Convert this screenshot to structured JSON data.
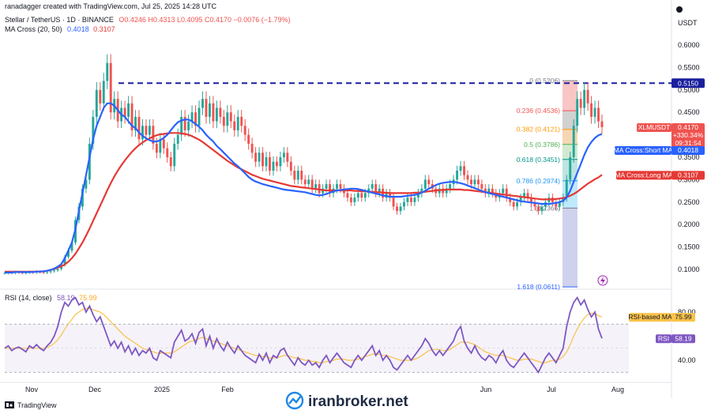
{
  "header": {
    "credit": "ranadagger created with TradingView.com, Jul 25, 2025 14:28 UTC",
    "symbol_line": "Stellar / TetherUS · 1D · BINANCE",
    "ohlc": "O0.4246 H0.4313 L0.4095 C0.4170 −0.0076 (−1.79%)",
    "ma_label": "MA Cross (20, 50)",
    "ma_short_val": "0.4018",
    "ma_long_val": "0.3107",
    "currency": "USDT"
  },
  "price_axis": {
    "ticks": [
      "0.6000",
      "0.5500",
      "0.5000",
      "0.4500",
      "0.4000",
      "0.3500",
      "0.3000",
      "0.2500",
      "0.2000",
      "0.1500",
      "0.1000"
    ],
    "tags": {
      "resistance": "0.5150",
      "symbol": "XLMUSDT",
      "last": "0.4170",
      "change": "+330.34%",
      "countdown": "09:31:54",
      "short_ma_label": "MA Cross:Short MA",
      "short_ma_val": "0.4018",
      "long_ma_label": "MA Cross:Long MA",
      "long_ma_val": "0.3107"
    }
  },
  "time_axis": [
    "Nov",
    "Dec",
    "2025",
    "Feb",
    "Jun",
    "Jul",
    "Aug"
  ],
  "fib_levels": [
    {
      "label": "0 (0.5206)",
      "value": 0.5206
    },
    {
      "label": "0.236 (0.4536)",
      "value": 0.4536
    },
    {
      "label": "0.382 (0.4121)",
      "value": 0.4121
    },
    {
      "label": "0.5 (0.3786)",
      "value": 0.3786
    },
    {
      "label": "0.618 (0.3451)",
      "value": 0.3451
    },
    {
      "label": "0.786 (0.2974)",
      "value": 0.2974
    },
    {
      "label": "1 (0.2366)",
      "value": 0.2366
    },
    {
      "label": "1.618 (0.0611)",
      "value": 0.0611
    }
  ],
  "rsi": {
    "label": "RSI (14, close)",
    "header_val": "58.19",
    "header_ma": "75.99",
    "ticks": [
      "80.00",
      "40.00"
    ],
    "ma_tag_label": "RSI-based MA",
    "ma_tag_val": "75.99",
    "rsi_tag_label": "RSI",
    "rsi_tag_val": "58.19"
  },
  "footer": {
    "tv_logo": "TradingView",
    "watermark": "iranbroker.net"
  },
  "colors": {
    "up": "#26a69a",
    "down": "#ef5350",
    "short_ma": "#2962ff",
    "long_ma": "#e53935",
    "rsi": "#7e57c2",
    "rsi_ma": "#f9c24a",
    "resistance": "#1a1f9e"
  },
  "chart_data": [
    {
      "type": "candlestick",
      "title": "Stellar / TetherUS · 1D · BINANCE",
      "ylim": [
        0.075,
        0.64
      ],
      "x_range": [
        "2024-10-15",
        "2025-08-31"
      ],
      "resistance": 0.515,
      "candles_close": [
        0.092,
        0.093,
        0.092,
        0.094,
        0.093,
        0.092,
        0.093,
        0.094,
        0.093,
        0.095,
        0.094,
        0.093,
        0.094,
        0.096,
        0.098,
        0.101,
        0.11,
        0.128,
        0.142,
        0.16,
        0.21,
        0.24,
        0.28,
        0.3,
        0.38,
        0.44,
        0.5,
        0.47,
        0.52,
        0.56,
        0.45,
        0.48,
        0.43,
        0.46,
        0.44,
        0.47,
        0.41,
        0.44,
        0.39,
        0.42,
        0.4,
        0.42,
        0.38,
        0.36,
        0.39,
        0.37,
        0.35,
        0.33,
        0.38,
        0.4,
        0.44,
        0.41,
        0.43,
        0.45,
        0.42,
        0.46,
        0.48,
        0.44,
        0.47,
        0.43,
        0.46,
        0.44,
        0.42,
        0.45,
        0.43,
        0.41,
        0.44,
        0.42,
        0.4,
        0.38,
        0.36,
        0.34,
        0.36,
        0.33,
        0.35,
        0.32,
        0.34,
        0.33,
        0.35,
        0.36,
        0.34,
        0.32,
        0.3,
        0.32,
        0.3,
        0.29,
        0.3,
        0.28,
        0.29,
        0.27,
        0.28,
        0.29,
        0.27,
        0.28,
        0.29,
        0.28,
        0.27,
        0.26,
        0.25,
        0.26,
        0.27,
        0.26,
        0.27,
        0.28,
        0.29,
        0.27,
        0.28,
        0.26,
        0.27,
        0.26,
        0.24,
        0.23,
        0.24,
        0.25,
        0.26,
        0.25,
        0.26,
        0.27,
        0.28,
        0.3,
        0.29,
        0.28,
        0.27,
        0.28,
        0.27,
        0.28,
        0.29,
        0.3,
        0.32,
        0.33,
        0.31,
        0.3,
        0.29,
        0.3,
        0.29,
        0.28,
        0.27,
        0.28,
        0.27,
        0.26,
        0.27,
        0.28,
        0.26,
        0.25,
        0.24,
        0.25,
        0.26,
        0.27,
        0.26,
        0.25,
        0.24,
        0.23,
        0.24,
        0.25,
        0.26,
        0.25,
        0.24,
        0.25,
        0.26,
        0.3,
        0.35,
        0.42,
        0.48,
        0.46,
        0.5,
        0.47,
        0.44,
        0.46,
        0.43,
        0.417
      ],
      "ma_short": [
        0.093,
        0.093,
        0.093,
        0.094,
        0.094,
        0.094,
        0.094,
        0.094,
        0.094,
        0.095,
        0.095,
        0.096,
        0.097,
        0.099,
        0.102,
        0.106,
        0.112,
        0.125,
        0.142,
        0.16,
        0.19,
        0.23,
        0.27,
        0.31,
        0.35,
        0.39,
        0.42,
        0.44,
        0.46,
        0.47,
        0.47,
        0.465,
        0.455,
        0.445,
        0.44,
        0.43,
        0.42,
        0.415,
        0.405,
        0.398,
        0.392,
        0.388,
        0.385,
        0.385,
        0.388,
        0.393,
        0.4,
        0.41,
        0.42,
        0.428,
        0.432,
        0.434,
        0.434,
        0.43,
        0.424,
        0.418,
        0.41,
        0.4,
        0.392,
        0.385,
        0.375,
        0.368,
        0.36,
        0.352,
        0.344,
        0.336,
        0.33,
        0.322,
        0.314,
        0.306,
        0.3,
        0.296,
        0.293,
        0.29,
        0.288,
        0.286,
        0.284,
        0.282,
        0.28,
        0.278,
        0.277,
        0.276,
        0.275,
        0.274,
        0.273,
        0.272,
        0.27,
        0.268,
        0.266,
        0.265,
        0.266,
        0.268,
        0.271,
        0.274,
        0.276,
        0.277,
        0.278,
        0.279,
        0.28,
        0.28,
        0.279,
        0.277,
        0.275,
        0.273,
        0.271,
        0.269,
        0.267,
        0.265,
        0.263,
        0.262,
        0.262,
        0.262,
        0.262,
        0.263,
        0.264,
        0.265,
        0.266,
        0.268,
        0.271,
        0.275,
        0.28,
        0.284,
        0.288,
        0.291,
        0.293,
        0.294,
        0.295,
        0.295,
        0.294,
        0.292,
        0.29,
        0.287,
        0.284,
        0.281,
        0.278,
        0.275,
        0.272,
        0.27,
        0.268,
        0.266,
        0.264,
        0.262,
        0.26,
        0.258,
        0.256,
        0.254,
        0.252,
        0.251,
        0.25,
        0.249,
        0.248,
        0.247,
        0.246,
        0.246,
        0.246,
        0.247,
        0.248,
        0.25,
        0.253,
        0.26,
        0.275,
        0.295,
        0.315,
        0.335,
        0.355,
        0.372,
        0.384,
        0.393,
        0.399,
        0.4018
      ],
      "ma_long": [
        0.095,
        0.095,
        0.095,
        0.095,
        0.095,
        0.095,
        0.095,
        0.095,
        0.095,
        0.095,
        0.095,
        0.096,
        0.097,
        0.099,
        0.101,
        0.104,
        0.107,
        0.111,
        0.117,
        0.125,
        0.135,
        0.147,
        0.16,
        0.175,
        0.191,
        0.208,
        0.225,
        0.242,
        0.259,
        0.276,
        0.292,
        0.307,
        0.32,
        0.332,
        0.343,
        0.353,
        0.362,
        0.37,
        0.377,
        0.383,
        0.388,
        0.392,
        0.396,
        0.399,
        0.401,
        0.402,
        0.403,
        0.404,
        0.404,
        0.404,
        0.403,
        0.402,
        0.4,
        0.397,
        0.393,
        0.389,
        0.384,
        0.378,
        0.372,
        0.366,
        0.36,
        0.354,
        0.348,
        0.342,
        0.337,
        0.332,
        0.327,
        0.323,
        0.319,
        0.315,
        0.311,
        0.308,
        0.305,
        0.302,
        0.3,
        0.298,
        0.296,
        0.294,
        0.292,
        0.29,
        0.288,
        0.286,
        0.285,
        0.284,
        0.283,
        0.282,
        0.281,
        0.28,
        0.279,
        0.278,
        0.277,
        0.276,
        0.276,
        0.276,
        0.276,
        0.276,
        0.276,
        0.276,
        0.276,
        0.275,
        0.275,
        0.274,
        0.274,
        0.273,
        0.273,
        0.272,
        0.272,
        0.271,
        0.271,
        0.27,
        0.27,
        0.27,
        0.27,
        0.27,
        0.27,
        0.27,
        0.271,
        0.271,
        0.272,
        0.273,
        0.274,
        0.275,
        0.276,
        0.277,
        0.277,
        0.278,
        0.278,
        0.278,
        0.278,
        0.278,
        0.277,
        0.277,
        0.276,
        0.275,
        0.274,
        0.273,
        0.272,
        0.271,
        0.27,
        0.269,
        0.268,
        0.267,
        0.266,
        0.265,
        0.264,
        0.263,
        0.262,
        0.261,
        0.26,
        0.259,
        0.258,
        0.257,
        0.256,
        0.256,
        0.256,
        0.256,
        0.257,
        0.258,
        0.259,
        0.261,
        0.264,
        0.268,
        0.273,
        0.279,
        0.285,
        0.291,
        0.296,
        0.301,
        0.305,
        0.3107
      ]
    },
    {
      "type": "line",
      "title": "RSI (14, close)",
      "ylim": [
        20,
        100
      ],
      "rsi": [
        50,
        52,
        48,
        50,
        51,
        49,
        47,
        52,
        50,
        53,
        50,
        48,
        52,
        55,
        60,
        68,
        80,
        88,
        85,
        90,
        92,
        86,
        88,
        80,
        85,
        78,
        72,
        76,
        68,
        60,
        52,
        56,
        50,
        55,
        47,
        52,
        45,
        50,
        44,
        48,
        46,
        50,
        42,
        40,
        48,
        46,
        44,
        42,
        55,
        60,
        65,
        56,
        58,
        62,
        54,
        63,
        66,
        52,
        60,
        50,
        58,
        52,
        48,
        55,
        50,
        46,
        52,
        48,
        44,
        42,
        40,
        38,
        45,
        40,
        46,
        38,
        44,
        42,
        48,
        50,
        44,
        40,
        36,
        42,
        38,
        36,
        40,
        36,
        38,
        34,
        40,
        44,
        38,
        42,
        46,
        42,
        38,
        36,
        34,
        40,
        44,
        40,
        44,
        48,
        52,
        44,
        48,
        40,
        44,
        40,
        34,
        32,
        36,
        40,
        44,
        40,
        44,
        48,
        52,
        58,
        54,
        48,
        44,
        48,
        44,
        48,
        52,
        56,
        64,
        68,
        56,
        50,
        46,
        52,
        46,
        42,
        40,
        44,
        42,
        38,
        44,
        48,
        40,
        36,
        34,
        38,
        42,
        46,
        42,
        38,
        34,
        30,
        36,
        42,
        46,
        42,
        38,
        44,
        50,
        68,
        80,
        88,
        92,
        86,
        90,
        82,
        76,
        80,
        66,
        58.19
      ],
      "rsi_ma": [
        50,
        50,
        50,
        50,
        50,
        50,
        50,
        50,
        50,
        50,
        50,
        50,
        51,
        52,
        54,
        57,
        61,
        66,
        70,
        74,
        78,
        80,
        82,
        83,
        83,
        82,
        81,
        80,
        78,
        75,
        72,
        69,
        66,
        63,
        60,
        58,
        56,
        54,
        52,
        50,
        49,
        48,
        47,
        46,
        46,
        46,
        46,
        46,
        47,
        49,
        51,
        53,
        55,
        56,
        57,
        58,
        59,
        58,
        57,
        56,
        55,
        54,
        53,
        52,
        51,
        50,
        49,
        48,
        47,
        46,
        45,
        44,
        44,
        43,
        43,
        42,
        42,
        42,
        43,
        44,
        44,
        43,
        42,
        42,
        41,
        40,
        40,
        39,
        39,
        38,
        38,
        39,
        39,
        40,
        41,
        41,
        41,
        40,
        40,
        40,
        41,
        42,
        43,
        44,
        45,
        45,
        45,
        44,
        44,
        43,
        42,
        41,
        40,
        40,
        40,
        40,
        41,
        42,
        44,
        46,
        48,
        49,
        49,
        49,
        48,
        48,
        49,
        51,
        53,
        55,
        55,
        55,
        54,
        53,
        51,
        49,
        47,
        46,
        45,
        44,
        44,
        44,
        43,
        42,
        41,
        40,
        40,
        41,
        41,
        41,
        40,
        39,
        38,
        38,
        39,
        40,
        40,
        41,
        43,
        47,
        53,
        60,
        66,
        71,
        75,
        78,
        79,
        79,
        77,
        75.99
      ]
    }
  ]
}
